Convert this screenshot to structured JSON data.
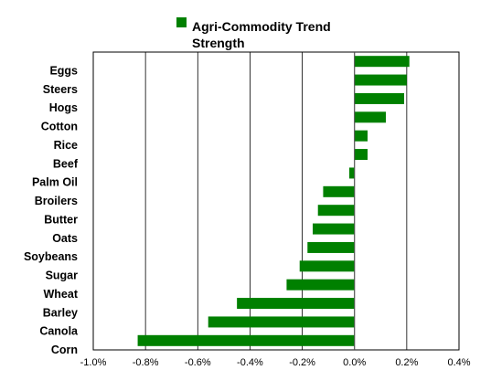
{
  "chart_data": {
    "type": "bar",
    "orientation": "horizontal",
    "title": "",
    "xlabel": "",
    "ylabel": "",
    "legend": {
      "label_lines": [
        "Agri-Commodity Trend",
        "Strength"
      ],
      "position": "top-center",
      "color": "#008000"
    },
    "categories": [
      "Eggs",
      "Steers",
      "Hogs",
      "Cotton",
      "Rice",
      "Beef",
      "Palm Oil",
      "Broilers",
      "Butter",
      "Oats",
      "Soybeans",
      "Sugar",
      "Wheat",
      "Barley",
      "Canola",
      "Corn"
    ],
    "series": [
      {
        "color": "#008000",
        "values": [
          0.0021,
          0.002,
          0.0019,
          0.0012,
          0.0005,
          0.0005,
          -0.0002,
          -0.0012,
          -0.0014,
          -0.0016,
          -0.0018,
          -0.0021,
          -0.0026,
          -0.0045,
          -0.0056,
          -0.0083
        ]
      }
    ],
    "xlim": [
      -0.01,
      0.004
    ],
    "xticks": [
      -0.01,
      -0.008,
      -0.006,
      -0.004,
      -0.002,
      0.0,
      0.002,
      0.004
    ],
    "xtick_labels": [
      "-1.0%",
      "-0.8%",
      "-0.6%",
      "-0.4%",
      "-0.2%",
      "0.0%",
      "0.2%",
      "0.4%"
    ],
    "grid": "vertical"
  }
}
